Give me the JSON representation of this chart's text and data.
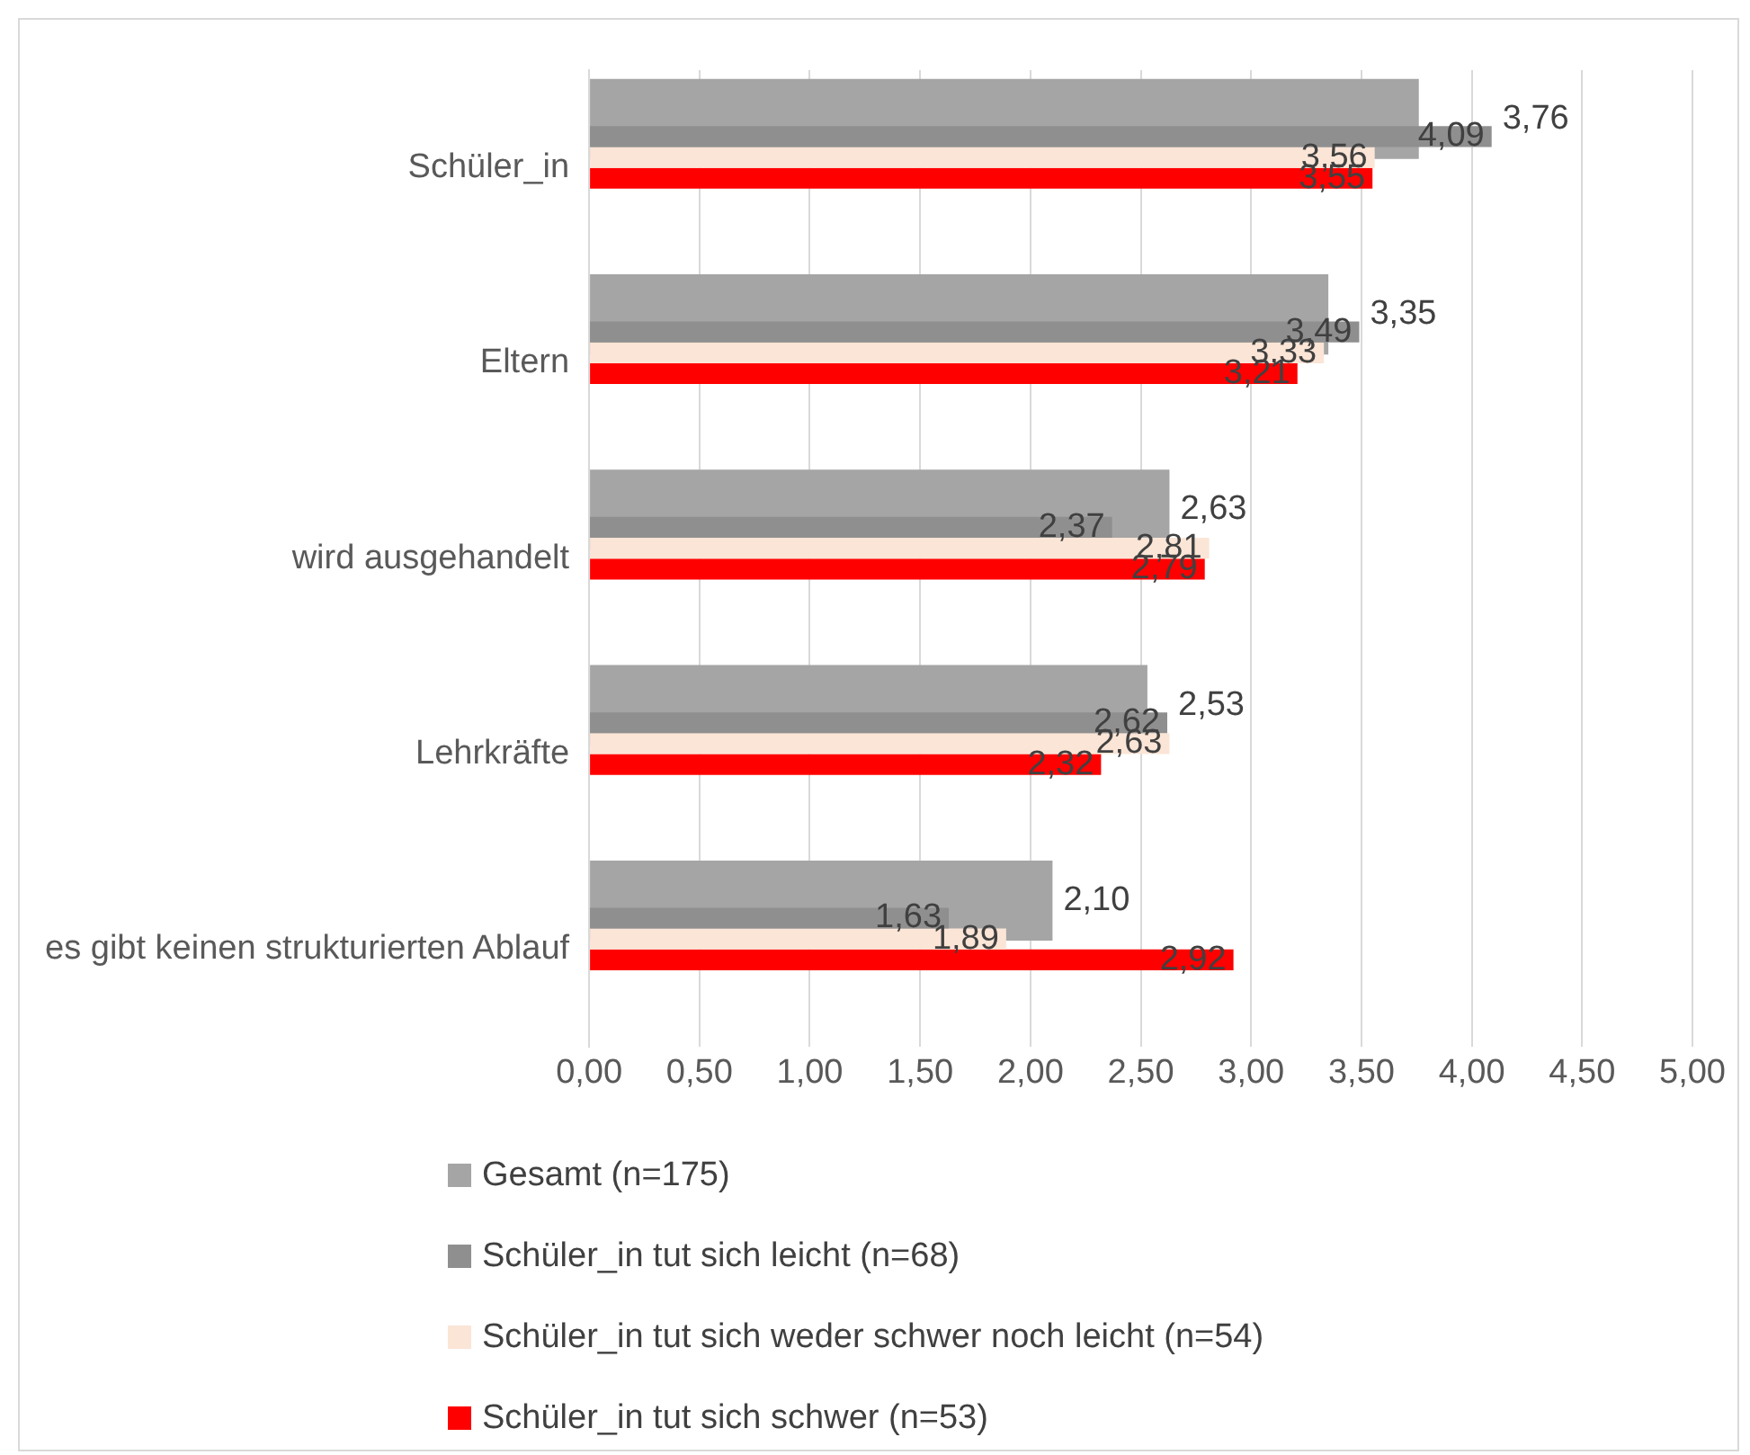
{
  "chart_data": {
    "type": "bar",
    "orientation": "horizontal",
    "categories": [
      "Schüler_in",
      "Eltern",
      "wird ausgehandelt",
      "Lehrkräfte",
      "es gibt keinen strukturierten Ablauf"
    ],
    "series": [
      {
        "name": "Gesamt (n=175)",
        "color": "#a5a5a5",
        "values": [
          3.76,
          3.35,
          2.63,
          2.53,
          2.1
        ],
        "value_labels": [
          "3,76",
          "3,35",
          "2,63",
          "2,53",
          "2,10"
        ]
      },
      {
        "name": "Schüler_in tut sich leicht (n=68)",
        "color": "#8f8f8f",
        "values": [
          4.09,
          3.49,
          2.37,
          2.62,
          1.63
        ],
        "value_labels": [
          "4,09",
          "3,49",
          "2,37",
          "2,62",
          "1,63"
        ]
      },
      {
        "name": "Schüler_in tut sich weder schwer noch leicht (n=54)",
        "color": "#fbe5d6",
        "values": [
          3.56,
          3.33,
          2.81,
          2.63,
          1.89
        ],
        "value_labels": [
          "3,56",
          "3,33",
          "2,81",
          "2,63",
          "1,89"
        ]
      },
      {
        "name": "Schüler_in tut sich schwer (n=53)",
        "color": "#ff0000",
        "values": [
          3.55,
          3.21,
          2.79,
          2.32,
          2.92
        ],
        "value_labels": [
          "3,55",
          "3,21",
          "2,79",
          "2,32",
          "2,92"
        ]
      }
    ],
    "xlim": [
      0,
      5
    ],
    "xticks": [
      {
        "value": 0,
        "label": "0,00"
      },
      {
        "value": 0.5,
        "label": "0,50"
      },
      {
        "value": 1,
        "label": "1,00"
      },
      {
        "value": 1.5,
        "label": "1,50"
      },
      {
        "value": 2,
        "label": "2,00"
      },
      {
        "value": 2.5,
        "label": "2,50"
      },
      {
        "value": 3,
        "label": "3,00"
      },
      {
        "value": 3.5,
        "label": "3,50"
      },
      {
        "value": 4,
        "label": "4,00"
      },
      {
        "value": 4.5,
        "label": "4,50"
      },
      {
        "value": 5,
        "label": "5,00"
      }
    ],
    "grid": "x",
    "legend": "bottom"
  }
}
